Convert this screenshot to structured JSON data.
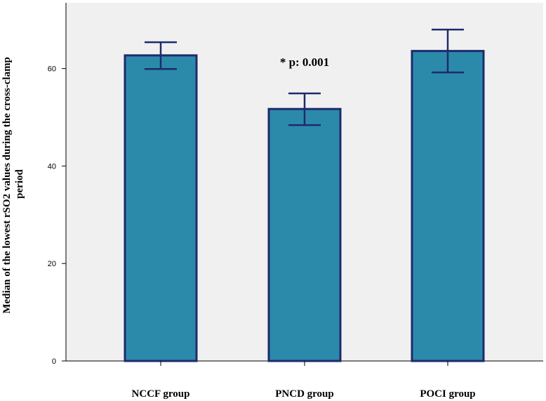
{
  "chart_data": {
    "type": "bar",
    "categories": [
      "NCCF group",
      "PNCD group",
      "POCI group"
    ],
    "values": [
      62.7,
      51.7,
      63.6
    ],
    "error_low": [
      59.9,
      48.4,
      59.2
    ],
    "error_high": [
      65.4,
      54.9,
      68.0
    ],
    "ylabel_lines": [
      "Median of the lowest rSO2 values during the cross-clamp",
      "period"
    ],
    "xlabel": "",
    "ylim": [
      0,
      68
    ],
    "yticks": [
      0,
      20,
      40,
      60
    ],
    "annotation": "* p: 0.001",
    "annotation_category": "PNCD group",
    "grid": false,
    "colors": {
      "bar_fill": "#2B8AAA",
      "bar_stroke": "#1E2A6E",
      "error_bar": "#1E2A6E",
      "plot_bg": "#F0F0F0"
    }
  }
}
